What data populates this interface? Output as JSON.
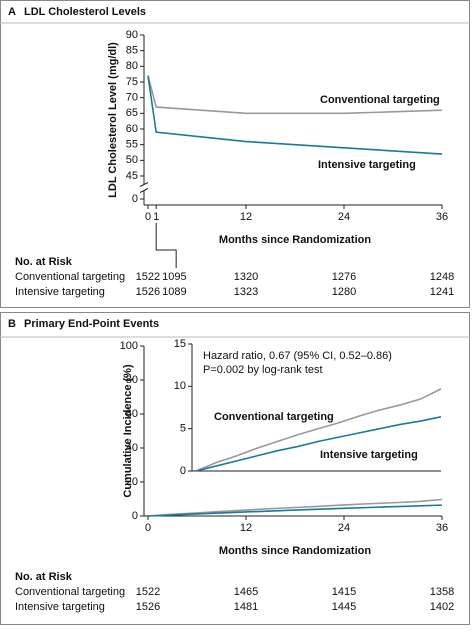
{
  "chart_data": [
    {
      "type": "line",
      "panel": "A",
      "title": "LDL Cholesterol Levels",
      "x_label": "Months since Randomization",
      "y_label": "LDL Cholesterol Level (mg/dl)",
      "x": [
        0,
        1,
        12,
        24,
        36
      ],
      "series": [
        {
          "name": "Conventional targeting",
          "color": "#999999",
          "values": [
            77,
            67,
            65,
            65,
            66
          ]
        },
        {
          "name": "Intensive targeting",
          "color": "#1a7a9a",
          "values": [
            77,
            59,
            56,
            54,
            52
          ]
        }
      ],
      "xlim": [
        0,
        36
      ],
      "xticks": [
        0,
        1,
        12,
        24,
        36
      ],
      "ylim": [
        0,
        90
      ],
      "yticks": [
        0,
        45,
        50,
        55,
        60,
        65,
        70,
        75,
        80,
        85,
        90
      ],
      "y_break": [
        0,
        45
      ],
      "risk_table": {
        "title": "No. at Risk",
        "x": [
          0,
          1,
          12,
          24,
          36
        ],
        "rows": [
          {
            "name": "Conventional targeting",
            "values": [
              1522,
              1095,
              1320,
              1276,
              1248
            ]
          },
          {
            "name": "Intensive targeting",
            "values": [
              1526,
              1089,
              1323,
              1280,
              1241
            ]
          }
        ]
      }
    },
    {
      "type": "line",
      "panel": "B",
      "title": "Primary End-Point Events",
      "x_label": "Months since Randomization",
      "y_label": "Cumulative Incidence (%)",
      "x": [
        0,
        3,
        6,
        9,
        12,
        15,
        18,
        21,
        24,
        27,
        30,
        33,
        36
      ],
      "series": [
        {
          "name": "Conventional targeting",
          "color": "#999999",
          "values": [
            0,
            1.0,
            1.8,
            2.7,
            3.5,
            4.3,
            5.0,
            5.7,
            6.5,
            7.2,
            7.8,
            8.5,
            9.7
          ]
        },
        {
          "name": "Intensive targeting",
          "color": "#1a7a9a",
          "values": [
            0,
            0.6,
            1.2,
            1.8,
            2.4,
            2.9,
            3.5,
            4.0,
            4.5,
            5.0,
            5.5,
            5.9,
            6.4
          ]
        }
      ],
      "xlim": [
        0,
        36
      ],
      "xticks": [
        0,
        12,
        24,
        36
      ],
      "ylim": [
        0,
        100
      ],
      "yticks": [
        0,
        20,
        40,
        60,
        80,
        100
      ],
      "inset": {
        "ylim": [
          0,
          15
        ],
        "yticks": [
          0,
          5,
          10,
          15
        ],
        "annotations": [
          "Hazard ratio, 0.67 (95% CI, 0.52–0.86)",
          "P=0.002 by log-rank test"
        ]
      },
      "risk_table": {
        "title": "No. at Risk",
        "x": [
          0,
          12,
          24,
          36
        ],
        "rows": [
          {
            "name": "Conventional targeting",
            "values": [
              1522,
              1465,
              1415,
              1358
            ]
          },
          {
            "name": "Intensive targeting",
            "values": [
              1526,
              1481,
              1445,
              1402
            ]
          }
        ]
      }
    }
  ]
}
